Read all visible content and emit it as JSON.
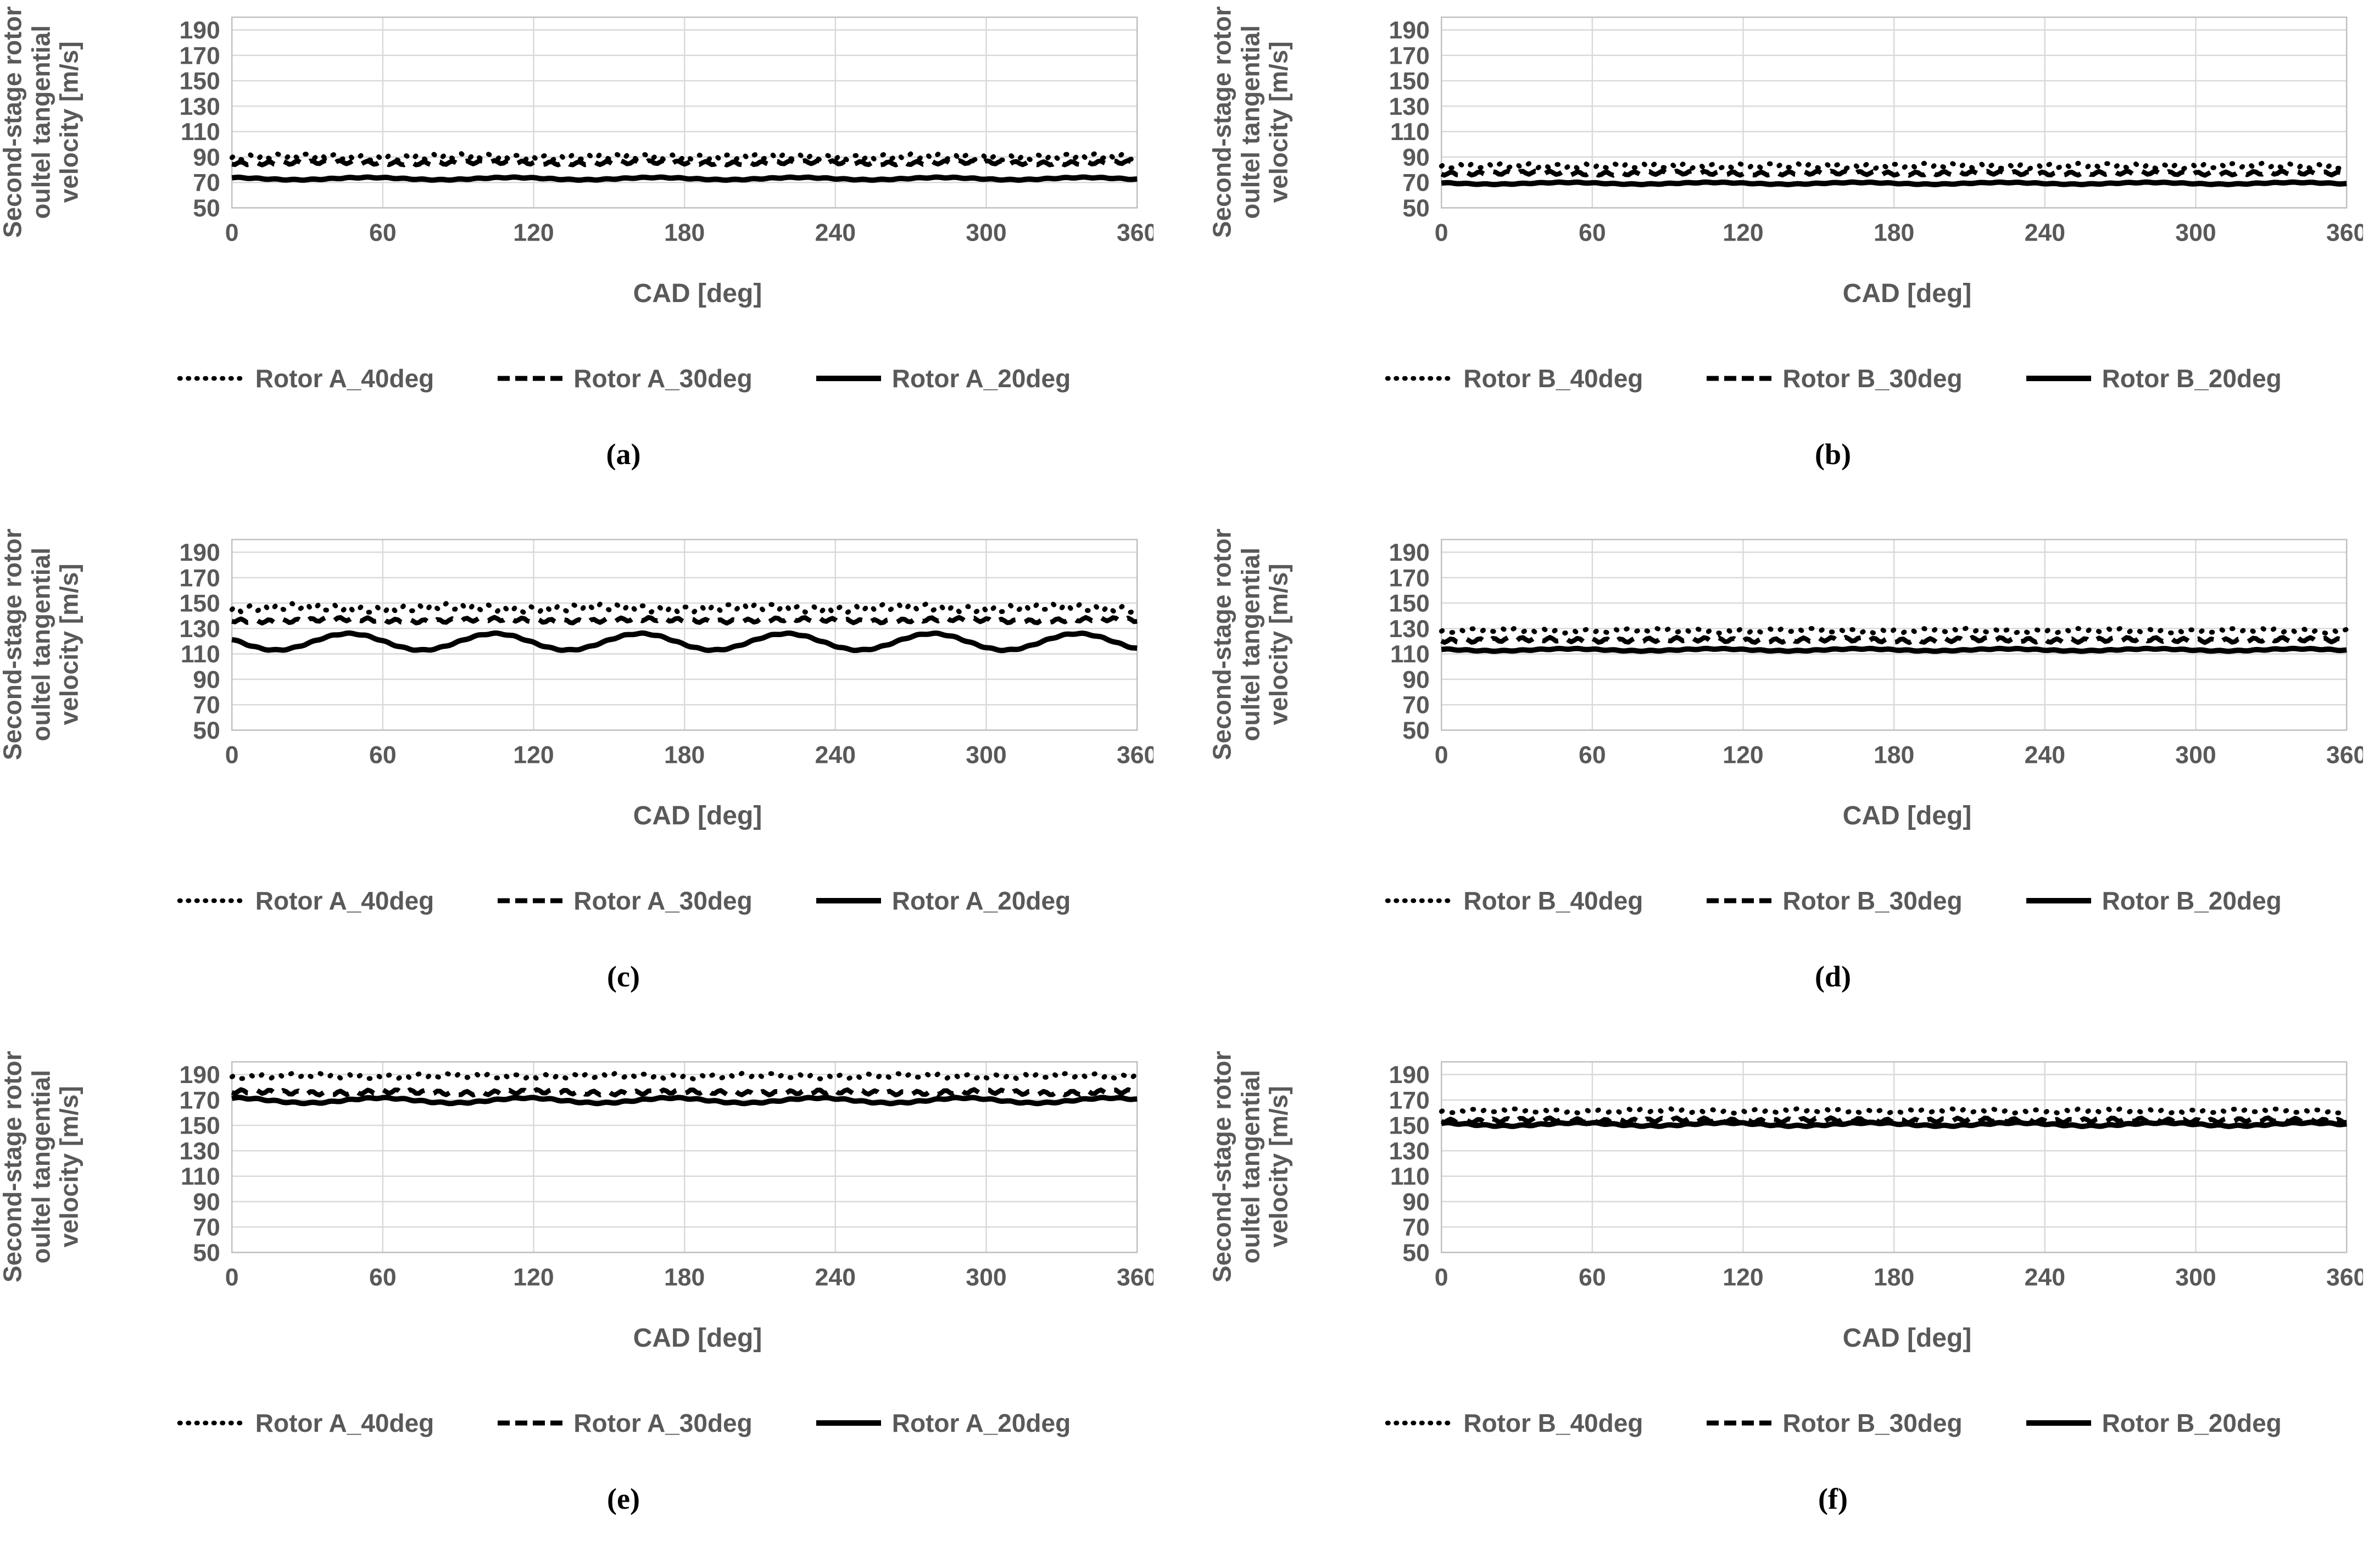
{
  "figure": {
    "x_axis_label": "CAD [deg]",
    "y_axis_label_lines": [
      "Second-stage rotor",
      "oultel tangential",
      "velocity [m/s]"
    ],
    "colors": {
      "series": "#000000",
      "gridline": "#d9d9d9",
      "frame": "#bfbfbf",
      "text": "#595959",
      "background": "#ffffff"
    }
  },
  "chart_data": [
    {
      "id": "a",
      "type": "line",
      "caption": "(a)",
      "grid": true,
      "legend_position": "bottom",
      "x": {
        "label": "CAD [deg]",
        "min": 0,
        "max": 360,
        "ticks": [
          0,
          60,
          120,
          180,
          240,
          300,
          360
        ]
      },
      "y": {
        "label": "Second-stage rotor oultel tangential velocity [m/s]",
        "min": 50,
        "max": 200,
        "gridline_ticks": [
          50,
          70,
          90,
          110,
          130,
          150,
          170,
          190
        ]
      },
      "series": [
        {
          "name": "Rotor A_40deg",
          "style": "dotted",
          "mean": 90,
          "wave": {
            "amp": 0.6,
            "period": 63,
            "phase": 10
          },
          "jitter": {
            "amp": 2.2,
            "period": 5.6,
            "phase": 0
          }
        },
        {
          "name": "Rotor A_30deg",
          "style": "dashed",
          "mean": 85.5,
          "wave": {
            "amp": 0.5,
            "period": 63,
            "phase": 25
          },
          "jitter": {
            "amp": 1.3,
            "period": 5.6,
            "phase": 2.2
          }
        },
        {
          "name": "Rotor A_20deg",
          "style": "solid",
          "mean": 73,
          "wave": {
            "amp": 0.9,
            "period": 57,
            "phase": 40
          },
          "jitter": {
            "amp": 0.35,
            "period": 7.3,
            "phase": 1
          }
        }
      ]
    },
    {
      "id": "b",
      "type": "line",
      "caption": "(b)",
      "grid": true,
      "legend_position": "bottom",
      "x": {
        "label": "CAD [deg]",
        "min": 0,
        "max": 360,
        "ticks": [
          0,
          60,
          120,
          180,
          240,
          300,
          360
        ]
      },
      "y": {
        "label": "Second-stage rotor oultel tangential velocity [m/s]",
        "min": 50,
        "max": 200,
        "gridline_ticks": [
          50,
          70,
          90,
          110,
          130,
          150,
          170,
          190
        ]
      },
      "series": [
        {
          "name": "Rotor B_40deg",
          "style": "dotted",
          "mean": 83,
          "wave": {
            "amp": 0.4,
            "period": 60,
            "phase": 5
          },
          "jitter": {
            "amp": 1.9,
            "period": 5.6,
            "phase": 0
          }
        },
        {
          "name": "Rotor B_30deg",
          "style": "dashed",
          "mean": 77.3,
          "wave": {
            "amp": 0.4,
            "period": 60,
            "phase": 20
          },
          "jitter": {
            "amp": 1.3,
            "period": 5.6,
            "phase": 2.5
          }
        },
        {
          "name": "Rotor B_20deg",
          "style": "solid",
          "mean": 69.3,
          "wave": {
            "amp": 0.7,
            "period": 58,
            "phase": 35
          },
          "jitter": {
            "amp": 0.3,
            "period": 7.3,
            "phase": 1
          }
        }
      ]
    },
    {
      "id": "c",
      "type": "line",
      "caption": "(c)",
      "grid": true,
      "legend_position": "bottom",
      "x": {
        "label": "CAD [deg]",
        "min": 0,
        "max": 360,
        "ticks": [
          0,
          60,
          120,
          180,
          240,
          300,
          360
        ]
      },
      "y": {
        "label": "Second-stage rotor oultel tangential velocity [m/s]",
        "min": 50,
        "max": 200,
        "gridline_ticks": [
          50,
          70,
          90,
          110,
          130,
          150,
          170,
          190
        ]
      },
      "series": [
        {
          "name": "Rotor A_40deg",
          "style": "dotted",
          "mean": 146,
          "wave": {
            "amp": 1.2,
            "period": 60,
            "phase": 12
          },
          "jitter": {
            "amp": 2.6,
            "period": 5.6,
            "phase": 0
          }
        },
        {
          "name": "Rotor A_30deg",
          "style": "dashed",
          "mean": 136.5,
          "wave": {
            "amp": 0.9,
            "period": 60,
            "phase": 30
          },
          "jitter": {
            "amp": 1.4,
            "period": 5.6,
            "phase": 2.2
          }
        },
        {
          "name": "Rotor A_20deg",
          "style": "solid",
          "mean": 119.5,
          "wave": {
            "amp": 6.5,
            "period": 58,
            "phase": 32
          },
          "jitter": {
            "amp": 0.45,
            "period": 7.3,
            "phase": 1
          }
        }
      ]
    },
    {
      "id": "d",
      "type": "line",
      "caption": "(d)",
      "grid": true,
      "legend_position": "bottom",
      "x": {
        "label": "CAD [deg]",
        "min": 0,
        "max": 360,
        "ticks": [
          0,
          60,
          120,
          180,
          240,
          300,
          360
        ]
      },
      "y": {
        "label": "Second-stage rotor oultel tangential velocity [m/s]",
        "min": 50,
        "max": 200,
        "gridline_ticks": [
          50,
          70,
          90,
          110,
          130,
          150,
          170,
          190
        ]
      },
      "series": [
        {
          "name": "Rotor B_40deg",
          "style": "dotted",
          "mean": 128.3,
          "wave": {
            "amp": 0.6,
            "period": 60,
            "phase": 8
          },
          "jitter": {
            "amp": 1.5,
            "period": 5.6,
            "phase": 0
          }
        },
        {
          "name": "Rotor B_30deg",
          "style": "dashed",
          "mean": 121,
          "wave": {
            "amp": 0.6,
            "period": 60,
            "phase": 22
          },
          "jitter": {
            "amp": 1.5,
            "period": 5.6,
            "phase": 2.6
          }
        },
        {
          "name": "Rotor B_20deg",
          "style": "solid",
          "mean": 113.2,
          "wave": {
            "amp": 0.8,
            "period": 58,
            "phase": 36
          },
          "jitter": {
            "amp": 0.35,
            "period": 7.3,
            "phase": 1
          }
        }
      ]
    },
    {
      "id": "e",
      "type": "line",
      "caption": "(e)",
      "grid": true,
      "legend_position": "bottom",
      "x": {
        "label": "CAD [deg]",
        "min": 0,
        "max": 360,
        "ticks": [
          0,
          60,
          120,
          180,
          240,
          300,
          360
        ]
      },
      "y": {
        "label": "Second-stage rotor oultel tangential velocity [m/s]",
        "min": 50,
        "max": 200,
        "gridline_ticks": [
          50,
          70,
          90,
          110,
          130,
          150,
          170,
          190
        ]
      },
      "series": [
        {
          "name": "Rotor A_40deg",
          "style": "dotted",
          "mean": 188.8,
          "wave": {
            "amp": 0.6,
            "period": 60,
            "phase": 15
          },
          "jitter": {
            "amp": 1.8,
            "period": 5.6,
            "phase": 0
          }
        },
        {
          "name": "Rotor A_30deg",
          "style": "dashed",
          "mean": 176,
          "wave": {
            "amp": 0.7,
            "period": 58,
            "phase": 50
          },
          "jitter": {
            "amp": 1.5,
            "period": 5.6,
            "phase": 2.4
          }
        },
        {
          "name": "Rotor A_20deg",
          "style": "solid",
          "mean": 169.6,
          "wave": {
            "amp": 2.0,
            "period": 58,
            "phase": 44.5
          },
          "jitter": {
            "amp": 0.5,
            "period": 7.3,
            "phase": 1
          }
        }
      ]
    },
    {
      "id": "f",
      "type": "line",
      "caption": "(f)",
      "grid": true,
      "legend_position": "bottom",
      "x": {
        "label": "CAD [deg]",
        "min": 0,
        "max": 360,
        "ticks": [
          0,
          60,
          120,
          180,
          240,
          300,
          360
        ]
      },
      "y": {
        "label": "Second-stage rotor oultel tangential velocity [m/s]",
        "min": 50,
        "max": 200,
        "gridline_ticks": [
          50,
          70,
          90,
          110,
          130,
          150,
          170,
          190
        ]
      },
      "series": [
        {
          "name": "Rotor B_40deg",
          "style": "dotted",
          "mean": 161.4,
          "wave": {
            "amp": 0.5,
            "period": 60,
            "phase": 10
          },
          "jitter": {
            "amp": 1.4,
            "period": 5.6,
            "phase": 0
          }
        },
        {
          "name": "Rotor B_30deg",
          "style": "dashed",
          "mean": 154,
          "wave": {
            "amp": 0.6,
            "period": 58,
            "phase": 25
          },
          "jitter": {
            "amp": 1.4,
            "period": 5.6,
            "phase": 2.3
          }
        },
        {
          "name": "Rotor B_20deg",
          "style": "solid",
          "mean": 150.8,
          "wave": {
            "amp": 1.2,
            "period": 58,
            "phase": 40
          },
          "jitter": {
            "amp": 0.5,
            "period": 7.3,
            "phase": 1
          }
        }
      ]
    }
  ]
}
